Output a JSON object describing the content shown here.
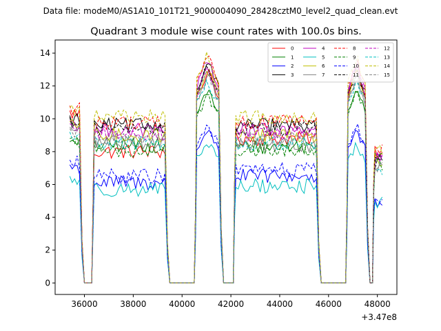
{
  "figure": {
    "suptitle": "Data file: modeM0/AS1A10_101T21_9000004090_28428cztM0_level2_quad_clean.evt"
  },
  "chart_data": {
    "type": "line",
    "title": "Quadrant 3 module wise count rates with 100.0s bins.",
    "xlabel": "",
    "ylabel": "",
    "x_offset_label": "+3.47e8",
    "xlim": [
      34800,
      48800
    ],
    "ylim": [
      -0.7,
      14.8
    ],
    "xticks": [
      36000,
      38000,
      40000,
      42000,
      44000,
      46000,
      48000
    ],
    "xtick_labels": [
      "36000",
      "38000",
      "40000",
      "42000",
      "44000",
      "46000",
      "48000"
    ],
    "yticks": [
      0,
      2,
      4,
      6,
      8,
      10,
      12,
      14
    ],
    "ytick_labels": [
      "0",
      "2",
      "4",
      "6",
      "8",
      "10",
      "12",
      "14"
    ],
    "legend_location": "top-right",
    "segments": [
      {
        "start": 35400,
        "end": 35800,
        "dip_end": 36400
      },
      {
        "start": 36400,
        "end": 39300,
        "dip_end": 40600
      },
      {
        "start": 40600,
        "end": 41500,
        "dip_end": 42200
      },
      {
        "start": 42200,
        "end": 45500,
        "dip_end": 46800
      },
      {
        "start": 46800,
        "end": 47500,
        "dip_end": 47900
      },
      {
        "start": 47900,
        "end": 48200,
        "dip_end": null
      }
    ],
    "series": [
      {
        "name": "0",
        "color": "#ff0000",
        "dash": false,
        "levels": [
          10.3,
          8.0,
          12.9,
          8.8,
          13.0,
          7.8
        ]
      },
      {
        "name": "1",
        "color": "#008000",
        "dash": false,
        "levels": [
          8.4,
          8.4,
          11.7,
          8.3,
          12.0,
          7.5
        ]
      },
      {
        "name": "2",
        "color": "#0000ff",
        "dash": false,
        "levels": [
          7.0,
          6.1,
          9.3,
          6.5,
          9.2,
          5.0
        ]
      },
      {
        "name": "3",
        "color": "#000000",
        "dash": false,
        "levels": [
          10.0,
          9.6,
          13.5,
          9.6,
          13.2,
          7.5
        ]
      },
      {
        "name": "4",
        "color": "#bf00bf",
        "dash": false,
        "levels": [
          9.7,
          9.3,
          13.6,
          9.3,
          13.4,
          7.6
        ]
      },
      {
        "name": "5",
        "color": "#00bfbf",
        "dash": false,
        "levels": [
          6.3,
          5.7,
          8.5,
          5.9,
          8.4,
          4.8
        ]
      },
      {
        "name": "6",
        "color": "#bfbf00",
        "dash": false,
        "levels": [
          9.6,
          9.0,
          13.0,
          9.0,
          13.0,
          7.4
        ]
      },
      {
        "name": "7",
        "color": "#808080",
        "dash": false,
        "levels": [
          9.3,
          8.6,
          12.6,
          8.4,
          12.6,
          7.2
        ]
      },
      {
        "name": "8",
        "color": "#ff0000",
        "dash": true,
        "levels": [
          10.6,
          9.8,
          13.8,
          9.8,
          13.6,
          8.2
        ]
      },
      {
        "name": "9",
        "color": "#008000",
        "dash": true,
        "levels": [
          8.6,
          8.1,
          11.5,
          8.1,
          11.8,
          7.3
        ]
      },
      {
        "name": "10",
        "color": "#0000ff",
        "dash": true,
        "levels": [
          7.3,
          6.5,
          9.6,
          6.9,
          9.6,
          5.3
        ]
      },
      {
        "name": "11",
        "color": "#000000",
        "dash": true,
        "levels": [
          9.9,
          9.4,
          13.2,
          9.4,
          13.0,
          7.5
        ]
      },
      {
        "name": "12",
        "color": "#bf00bf",
        "dash": true,
        "levels": [
          9.5,
          9.1,
          13.1,
          9.1,
          13.1,
          7.4
        ]
      },
      {
        "name": "13",
        "color": "#00bfbf",
        "dash": true,
        "levels": [
          9.0,
          8.5,
          12.3,
          8.5,
          12.4,
          7.0
        ]
      },
      {
        "name": "14",
        "color": "#bfbf00",
        "dash": true,
        "levels": [
          10.5,
          10.1,
          14.0,
          10.1,
          13.8,
          8.0
        ]
      },
      {
        "name": "15",
        "color": "#808080",
        "dash": true,
        "levels": [
          9.2,
          8.8,
          12.8,
          8.8,
          12.7,
          7.3
        ]
      }
    ]
  }
}
